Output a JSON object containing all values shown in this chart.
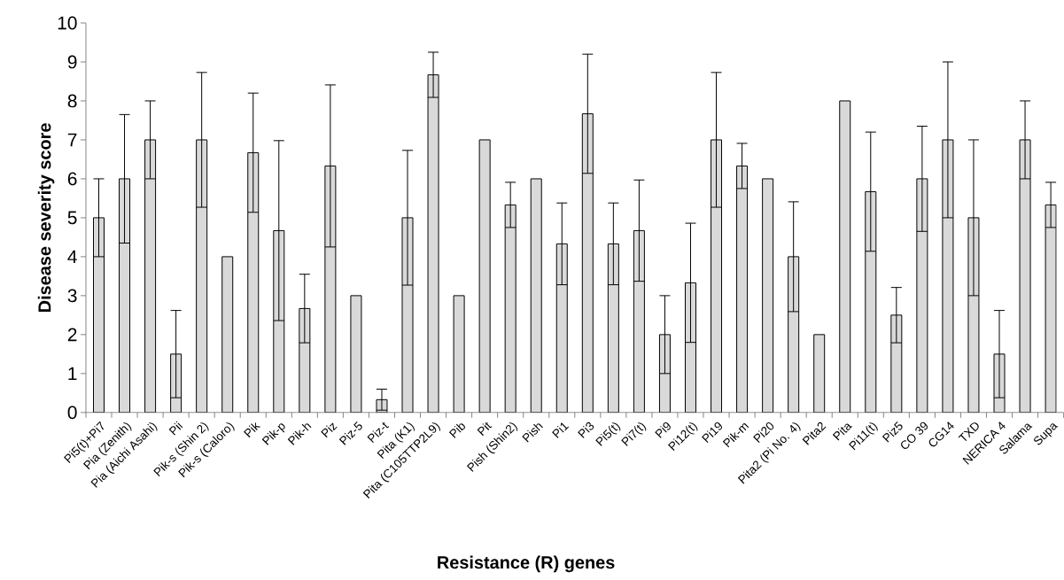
{
  "chart_data": {
    "type": "bar",
    "xlabel": "Resistance (R) genes",
    "ylabel": "Disease severity score",
    "categories": [
      "Pi5(t)+Pi7",
      "Pia (Zenith)",
      "Pia (Aichi Asahi)",
      "Pii",
      "Pik-s (Shin 2)",
      "Pik-s (Caloro)",
      "Pik",
      "Pik-p",
      "Pik-h",
      "Piz",
      "Piz-5",
      "Piz-t",
      "Pita (K1)",
      "Pita (C105TTP2L9)",
      "Pib",
      "Pit",
      "Pish (Shin2)",
      "Pish",
      "Pi1",
      "Pi3",
      "Pi5(t)",
      "Pi7(t)",
      "Pi9",
      "Pi12(t)",
      "Pi19",
      "Pik-m",
      "Pi20",
      "Pita2 (Pi No. 4)",
      "Pita2",
      "Pita",
      "Pi11(t)",
      "Piz5",
      "CO 39",
      "CG14",
      "TXD",
      "NERICA 4",
      "Salama",
      "Supa"
    ],
    "values": [
      5,
      6,
      7,
      1.5,
      7,
      4,
      6.67,
      4.67,
      2.67,
      6.33,
      3,
      0.33,
      5,
      8.67,
      3,
      7,
      5.33,
      6,
      4.33,
      7.67,
      4.33,
      4.67,
      2,
      3.33,
      7,
      6.33,
      6,
      4,
      2,
      8,
      5.67,
      2.5,
      6,
      7,
      5,
      1.5,
      7,
      5.33
    ],
    "errors": [
      1,
      1.65,
      1,
      1.12,
      1.73,
      null,
      1.53,
      2.31,
      0.88,
      2.08,
      null,
      0.27,
      1.73,
      0.58,
      null,
      null,
      0.58,
      null,
      1.05,
      1.53,
      1.05,
      1.3,
      1,
      1.53,
      1.73,
      0.58,
      null,
      1.41,
      null,
      null,
      1.53,
      0.71,
      1.35,
      2,
      2,
      1.12,
      1,
      0.58
    ],
    "color": "#d9d9d9",
    "ylim": [
      0,
      10
    ],
    "yticks": [
      0,
      1,
      2,
      3,
      4,
      5,
      6,
      7,
      8,
      9,
      10
    ],
    "grid": false
  }
}
